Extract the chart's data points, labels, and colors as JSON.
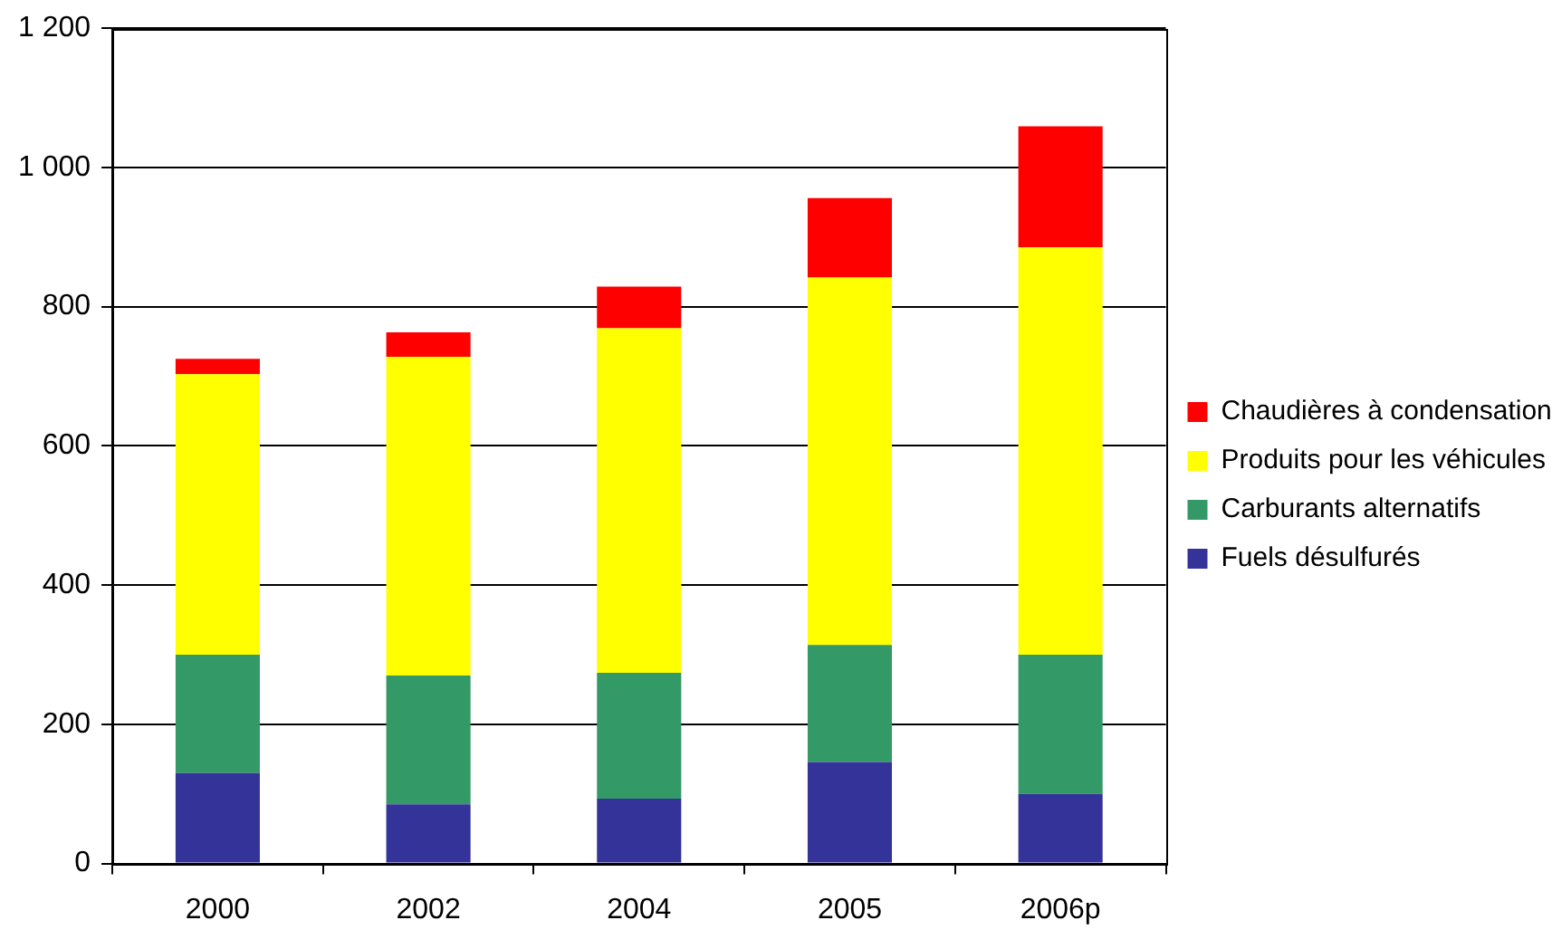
{
  "chart_data": {
    "type": "bar",
    "stacked": true,
    "categories": [
      "2000",
      "2002",
      "2004",
      "2005",
      "2006p"
    ],
    "series": [
      {
        "name": "Fuels désulfurés",
        "color": "#333399",
        "values": [
          130,
          85,
          93,
          146,
          100
        ]
      },
      {
        "name": "Carburants alternatifs",
        "color": "#339966",
        "values": [
          170,
          185,
          181,
          168,
          200
        ]
      },
      {
        "name": "Produits pour les véhicules",
        "color": "#ffff00",
        "values": [
          403,
          458,
          495,
          528,
          585
        ]
      },
      {
        "name": "Chaudières à condensation",
        "color": "#ff0000",
        "values": [
          22,
          35,
          60,
          114,
          174
        ]
      }
    ],
    "ylim": [
      0,
      1200
    ],
    "yticks": [
      0,
      200,
      400,
      600,
      800,
      {
        "value": 1000,
        "label": "1 000"
      },
      {
        "value": 1200,
        "label": "1 200"
      }
    ],
    "grid": "y",
    "legend": "right"
  }
}
